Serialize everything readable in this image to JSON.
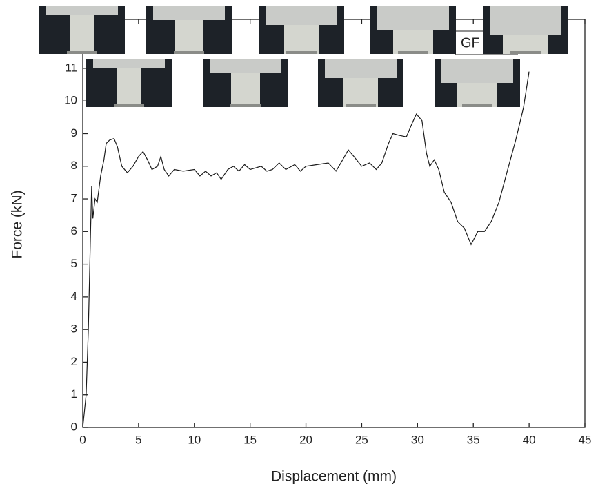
{
  "chart_data": {
    "type": "line",
    "x_label": "Displacement (mm)",
    "y_label": "Force (kN)",
    "annotation": "GF",
    "color": "#1a1a1a",
    "xlim": [
      0,
      45
    ],
    "ylim": [
      0,
      12.5
    ],
    "xticks": [
      0,
      5,
      10,
      15,
      20,
      25,
      30,
      35,
      40,
      45
    ],
    "yticks": [
      0,
      1,
      2,
      3,
      4,
      5,
      6,
      7,
      8,
      9,
      10,
      11
    ],
    "x": [
      0,
      0.3,
      0.5,
      0.7,
      0.8,
      0.9,
      1.1,
      1.3,
      1.6,
      1.9,
      2.1,
      2.4,
      2.8,
      3.1,
      3.5,
      4,
      4.5,
      5,
      5.4,
      5.8,
      6.2,
      6.7,
      7,
      7.3,
      7.7,
      8.2,
      9,
      10,
      10.5,
      11,
      11.5,
      12,
      12.4,
      13,
      13.5,
      14,
      14.5,
      15,
      16,
      16.5,
      17,
      17.6,
      18.2,
      19,
      19.5,
      20,
      21,
      22,
      22.7,
      23.3,
      23.8,
      24.3,
      25,
      25.7,
      26.3,
      26.8,
      27.4,
      27.8,
      28.3,
      29,
      29.5,
      29.9,
      30.4,
      30.8,
      31.1,
      31.5,
      31.9,
      32.4,
      33,
      33.6,
      34.2,
      34.8,
      35.4,
      36,
      36.6,
      37.3,
      38,
      38.8,
      39.5,
      40
    ],
    "values": [
      0,
      1,
      3,
      6,
      7.4,
      6.4,
      7,
      6.9,
      7.7,
      8.2,
      8.7,
      8.8,
      8.85,
      8.6,
      8.0,
      7.8,
      8.0,
      8.3,
      8.45,
      8.2,
      7.9,
      8.0,
      8.3,
      7.9,
      7.7,
      7.9,
      7.85,
      7.9,
      7.7,
      7.85,
      7.7,
      7.8,
      7.6,
      7.9,
      8.0,
      7.85,
      8.05,
      7.9,
      8.0,
      7.85,
      7.9,
      8.1,
      7.9,
      8.05,
      7.85,
      8.0,
      8.05,
      8.1,
      7.85,
      8.2,
      8.5,
      8.3,
      8.0,
      8.1,
      7.9,
      8.1,
      8.7,
      9.0,
      8.95,
      8.9,
      9.3,
      9.6,
      9.4,
      8.4,
      8.0,
      8.2,
      7.9,
      7.2,
      6.9,
      6.3,
      6.1,
      5.6,
      6.0,
      6.0,
      6.3,
      6.9,
      7.8,
      8.8,
      9.8,
      10.9
    ]
  }
}
